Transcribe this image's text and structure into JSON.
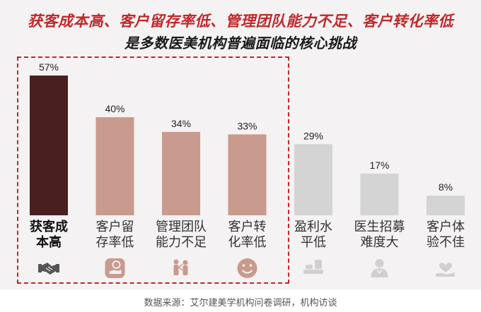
{
  "header": {
    "line1": "获客成本高、客户留存率低、管理团队能力不足、客户转化率低",
    "line2": "是多数医美机构普遍面临的核心挑战"
  },
  "chart_data": {
    "type": "bar",
    "categories": [
      "获客成本高",
      "客户留存率低",
      "管理团队能力不足",
      "客户转化率低",
      "盈利水平低",
      "医生招募难度大",
      "客户体验不佳"
    ],
    "category_lines": [
      [
        "获客成",
        "本高"
      ],
      [
        "客户留",
        "存率低"
      ],
      [
        "管理团队",
        "能力不足"
      ],
      [
        "客户转",
        "化率低"
      ],
      [
        "盈利水",
        "平低"
      ],
      [
        "医生招募",
        "难度大"
      ],
      [
        "客户体",
        "验不佳"
      ]
    ],
    "values": [
      57,
      40,
      34,
      33,
      29,
      17,
      8
    ],
    "data_labels": [
      "57%",
      "40%",
      "34%",
      "33%",
      "29%",
      "17%",
      "8%"
    ],
    "unit": "%",
    "ylim": [
      0,
      57
    ],
    "grid": false,
    "legend": "none",
    "icons": [
      "handshake-icon",
      "hand-money-icon",
      "team-icon",
      "smile-icon",
      "coins-icon",
      "doctor-icon",
      "hand-heart-icon"
    ],
    "colors": {
      "primary": "#4a1f1f",
      "highlight": "#c99a8e",
      "other": "#d4d4d4",
      "icon_highlight": "#c99a8e",
      "icon_other": "#d0d0d0",
      "primary_label": "#111111",
      "label": "#333333"
    }
  },
  "source": "数据来源：艾尔建美学机构问卷调研，机构访谈"
}
